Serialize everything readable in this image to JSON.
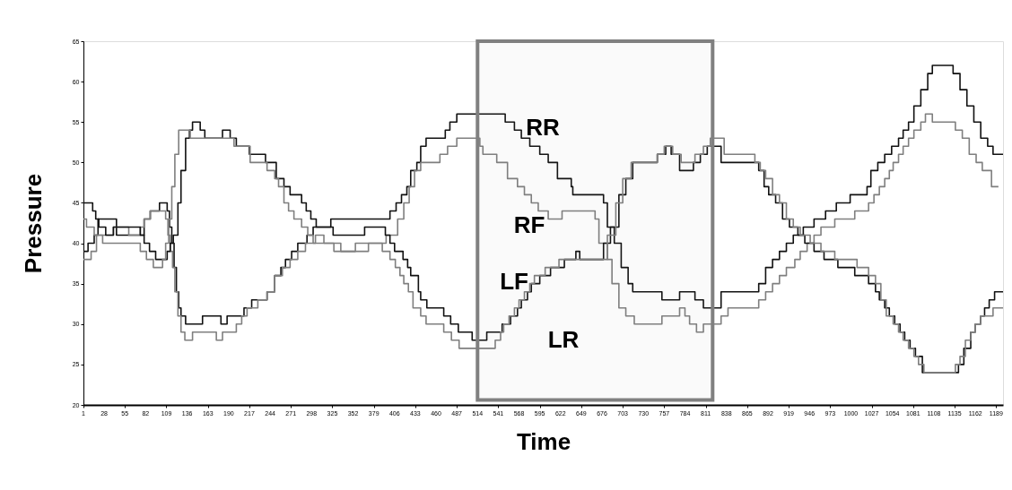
{
  "chart_data": {
    "type": "step",
    "xlabel": "Time",
    "ylabel": "Pressure",
    "xlim": [
      1,
      1198
    ],
    "xticks": [
      1,
      28,
      55,
      82,
      109,
      136,
      163,
      190,
      217,
      244,
      271,
      298,
      325,
      352,
      379,
      406,
      433,
      460,
      487,
      514,
      541,
      568,
      595,
      622,
      649,
      676,
      703,
      730,
      757,
      784,
      811,
      838,
      865,
      892,
      919,
      946,
      973,
      1000,
      1027,
      1054,
      1081,
      1108,
      1135,
      1162,
      1189
    ],
    "ylim": [
      20,
      65
    ],
    "yticks": [
      20,
      25,
      30,
      35,
      40,
      45,
      50,
      55,
      60,
      65
    ],
    "grid": false,
    "legend": false,
    "marker": "none",
    "line_style": "solid",
    "series": [
      {
        "color": "#111111",
        "x": [
          1,
          7,
          15,
          20,
          44,
          76,
          80,
          88,
          100,
          110,
          113,
          116,
          119,
          122,
          125,
          128,
          134,
          156,
          180,
          188,
          205,
          210,
          220,
          240,
          250,
          258,
          264,
          272,
          280,
          292,
          300,
          323,
          392,
          400,
          408,
          415,
          422,
          427,
          435,
          440,
          447,
          468,
          472,
          478,
          487,
          550,
          562,
          571,
          582,
          595,
          606,
          618,
          636,
          638,
          678,
          683,
          692,
          701,
          710,
          716,
          754,
          777,
          797,
          808,
          831,
          880,
          889,
          898,
          907,
          916,
          925,
          938,
          952,
          967,
          981,
          999,
          1021,
          1026,
          1035,
          1044,
          1053,
          1062,
          1068,
          1075,
          1082,
          1091,
          1100,
          1106,
          1133,
          1142,
          1151,
          1160,
          1169,
          1178,
          1185,
          1198
        ],
        "values": [
          39,
          40,
          41,
          43,
          41,
          41,
          43,
          44,
          45,
          44,
          42,
          40,
          37,
          34,
          32,
          31,
          30,
          31,
          30,
          31,
          31,
          32,
          33,
          34,
          36,
          37,
          38,
          39,
          40,
          41,
          42,
          43,
          43,
          44,
          45,
          46,
          47,
          49,
          50,
          52,
          53,
          53,
          54,
          55,
          56,
          55,
          54,
          53,
          52,
          51,
          50,
          48,
          47,
          46,
          45,
          42,
          40,
          37,
          35,
          34,
          33,
          34,
          33,
          32,
          34,
          35,
          37,
          38,
          39,
          40,
          41,
          42,
          43,
          44,
          45,
          46,
          47,
          49,
          50,
          51,
          52,
          53,
          54,
          55,
          57,
          59,
          61,
          62,
          61,
          59,
          57,
          55,
          53,
          52,
          51,
          51
        ]
      },
      {
        "color": "#7f7f7f",
        "x": [
          1,
          11,
          18,
          40,
          60,
          75,
          80,
          88,
          108,
          111,
          114,
          117,
          120,
          124,
          128,
          133,
          143,
          174,
          182,
          200,
          207,
          214,
          228,
          240,
          250,
          260,
          270,
          280,
          290,
          303,
          314,
          336,
          355,
          395,
          410,
          418,
          425,
          432,
          440,
          465,
          475,
          487,
          517,
          521,
          539,
          553,
          566,
          575,
          584,
          593,
          606,
          624,
          667,
          672,
          683,
          689,
          698,
          707,
          718,
          754,
          777,
          784,
          790,
          799,
          808,
          831,
          840,
          880,
          889,
          898,
          907,
          916,
          927,
          934,
          943,
          952,
          961,
          979,
          1005,
          1023,
          1030,
          1037,
          1044,
          1050,
          1055,
          1062,
          1068,
          1075,
          1082,
          1091,
          1097,
          1106,
          1136,
          1145,
          1154,
          1163,
          1171,
          1183,
          1192
        ],
        "values": [
          38,
          39,
          41,
          42,
          41,
          42,
          43,
          44,
          43,
          41,
          39,
          37,
          34,
          31,
          29,
          28,
          29,
          28,
          29,
          30,
          31,
          32,
          33,
          34,
          36,
          37,
          38,
          39,
          40,
          41,
          40,
          39,
          40,
          41,
          43,
          45,
          47,
          49,
          50,
          51,
          52,
          53,
          52,
          51,
          50,
          48,
          47,
          46,
          45,
          44,
          43,
          44,
          43,
          40,
          38,
          35,
          32,
          31,
          30,
          31,
          32,
          31,
          30,
          29,
          30,
          31,
          32,
          33,
          34,
          35,
          36,
          37,
          38,
          39,
          40,
          41,
          42,
          43,
          44,
          45,
          46,
          47,
          48,
          49,
          50,
          51,
          52,
          53,
          54,
          55,
          56,
          55,
          54,
          53,
          51,
          50,
          49,
          47,
          47
        ]
      },
      {
        "color": "#111111",
        "x": [
          1,
          13,
          17,
          21,
          30,
          40,
          75,
          80,
          87,
          95,
          110,
          114,
          118,
          124,
          128,
          134,
          139,
          143,
          153,
          159,
          182,
          192,
          200,
          217,
          238,
          252,
          262,
          270,
          285,
          291,
          297,
          304,
          326,
          367,
          394,
          400,
          406,
          417,
          423,
          427,
          437,
          440,
          448,
          470,
          479,
          489,
          507,
          526,
          546,
          557,
          566,
          571,
          579,
          584,
          595,
          609,
          627,
          642,
          647,
          678,
          687,
          698,
          707,
          716,
          748,
          759,
          766,
          777,
          795,
          804,
          813,
          831,
          880,
          887,
          893,
          902,
          911,
          920,
          931,
          940,
          952,
          965,
          983,
          1005,
          1023,
          1032,
          1037,
          1044,
          1050,
          1057,
          1064,
          1070,
          1077,
          1084,
          1093,
          1140,
          1147,
          1156,
          1162,
          1169,
          1174,
          1180,
          1187,
          1198
        ],
        "values": [
          45,
          44,
          43,
          42,
          41,
          42,
          41,
          40,
          39,
          38,
          39,
          40,
          41,
          45,
          49,
          53,
          54,
          55,
          54,
          53,
          54,
          53,
          52,
          51,
          50,
          48,
          47,
          46,
          45,
          44,
          43,
          42,
          41,
          42,
          41,
          40,
          39,
          38,
          37,
          36,
          34,
          33,
          32,
          31,
          30,
          29,
          28,
          29,
          30,
          31,
          32,
          33,
          34,
          35,
          36,
          37,
          38,
          39,
          38,
          40,
          42,
          46,
          48,
          50,
          51,
          52,
          51,
          49,
          50,
          51,
          52,
          50,
          49,
          47,
          46,
          45,
          43,
          42,
          41,
          40,
          39,
          38,
          37,
          36,
          35,
          34,
          33,
          32,
          31,
          30,
          29,
          28,
          27,
          26,
          24,
          25,
          27,
          29,
          30,
          31,
          32,
          33,
          34,
          34
        ]
      },
      {
        "color": "#7f7f7f",
        "x": [
          1,
          5,
          15,
          26,
          75,
          83,
          92,
          104,
          108,
          112,
          116,
          120,
          125,
          140,
          197,
          218,
          240,
          250,
          255,
          262,
          268,
          275,
          285,
          293,
          300,
          327,
          372,
          390,
          400,
          407,
          413,
          418,
          424,
          430,
          440,
          447,
          470,
          480,
          490,
          537,
          544,
          548,
          555,
          562,
          568,
          575,
          582,
          588,
          602,
          620,
          683,
          694,
          703,
          714,
          748,
          757,
          768,
          779,
          797,
          808,
          817,
          835,
          875,
          882,
          889,
          898,
          907,
          916,
          925,
          934,
          947,
          961,
          979,
          1008,
          1023,
          1032,
          1039,
          1046,
          1055,
          1062,
          1068,
          1075,
          1082,
          1088,
          1095,
          1136,
          1142,
          1149,
          1156,
          1162,
          1169,
          1185,
          1198
        ],
        "values": [
          43,
          42,
          41,
          40,
          39,
          38,
          37,
          38,
          40,
          43,
          47,
          51,
          54,
          53,
          52,
          50,
          49,
          48,
          47,
          45,
          44,
          43,
          42,
          41,
          40,
          39,
          40,
          39,
          38,
          37,
          36,
          35,
          34,
          32,
          31,
          30,
          29,
          28,
          27,
          28,
          29,
          30,
          31,
          32,
          33,
          34,
          35,
          36,
          37,
          38,
          41,
          45,
          48,
          50,
          51,
          52,
          51,
          50,
          51,
          52,
          53,
          51,
          50,
          49,
          48,
          46,
          45,
          43,
          42,
          41,
          40,
          39,
          38,
          37,
          36,
          35,
          33,
          31,
          30,
          29,
          28,
          27,
          26,
          25,
          24,
          25,
          26,
          28,
          29,
          30,
          31,
          32,
          32
        ]
      }
    ],
    "bands": [
      {
        "axis": "x",
        "from": 514,
        "to": 820,
        "color": "#808080"
      }
    ],
    "annotations": [
      "RR",
      "RF",
      "LF",
      "LR"
    ]
  }
}
